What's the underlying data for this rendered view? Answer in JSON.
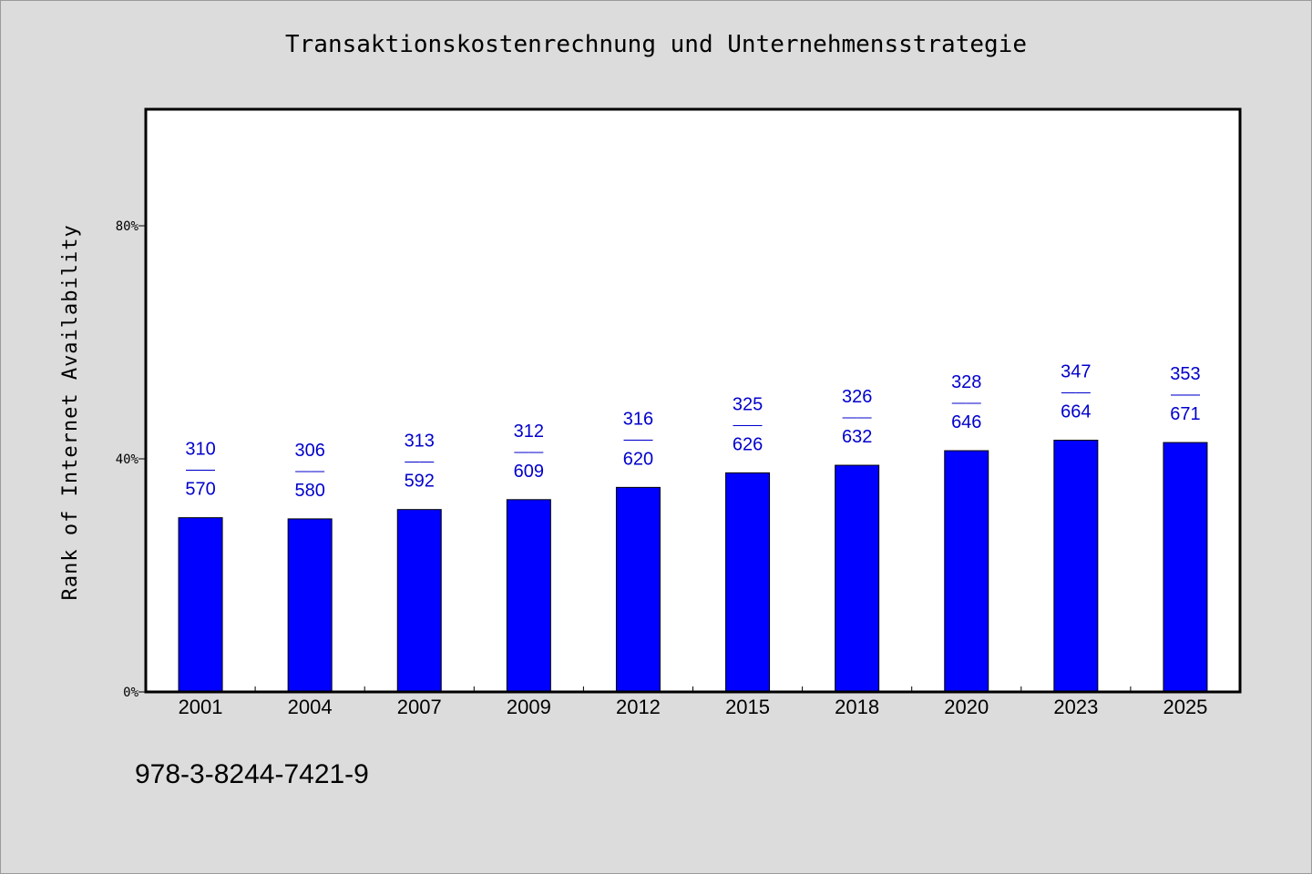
{
  "chart_data": {
    "type": "bar",
    "title": "Transaktionskostenrechnung und Unternehmensstrategie",
    "xlabel": "",
    "ylabel": "Rank of Internet Availability",
    "categories": [
      "2001",
      "2004",
      "2007",
      "2009",
      "2012",
      "2015",
      "2018",
      "2020",
      "2023",
      "2025"
    ],
    "values": [
      0.299,
      0.297,
      0.313,
      0.33,
      0.351,
      0.376,
      0.389,
      0.414,
      0.432,
      0.428
    ],
    "data_labels": [
      {
        "top": "310",
        "sep": "——",
        "bottom": "570"
      },
      {
        "top": "306",
        "sep": "——",
        "bottom": "580"
      },
      {
        "top": "313",
        "sep": "——",
        "bottom": "592"
      },
      {
        "top": "312",
        "sep": "——",
        "bottom": "609"
      },
      {
        "top": "316",
        "sep": "——",
        "bottom": "620"
      },
      {
        "top": "325",
        "sep": "——",
        "bottom": "626"
      },
      {
        "top": "326",
        "sep": "——",
        "bottom": "632"
      },
      {
        "top": "328",
        "sep": "——",
        "bottom": "646"
      },
      {
        "top": "347",
        "sep": "——",
        "bottom": "664"
      },
      {
        "top": "353",
        "sep": "——",
        "bottom": "671"
      }
    ],
    "yticks": [
      {
        "value": 0,
        "label": "0%"
      },
      {
        "value": 0.4,
        "label": "40%"
      },
      {
        "value": 0.8,
        "label": "80%"
      }
    ],
    "ylim": [
      0,
      1.0
    ],
    "grid": false,
    "colors": {
      "bar": "#0000ff",
      "label": "#0000cc",
      "axis": "#000000",
      "plot_bg": "#ffffff",
      "page_bg": "#dcdcdc"
    }
  },
  "footer": {
    "isbn": "978-3-8244-7421-9"
  }
}
